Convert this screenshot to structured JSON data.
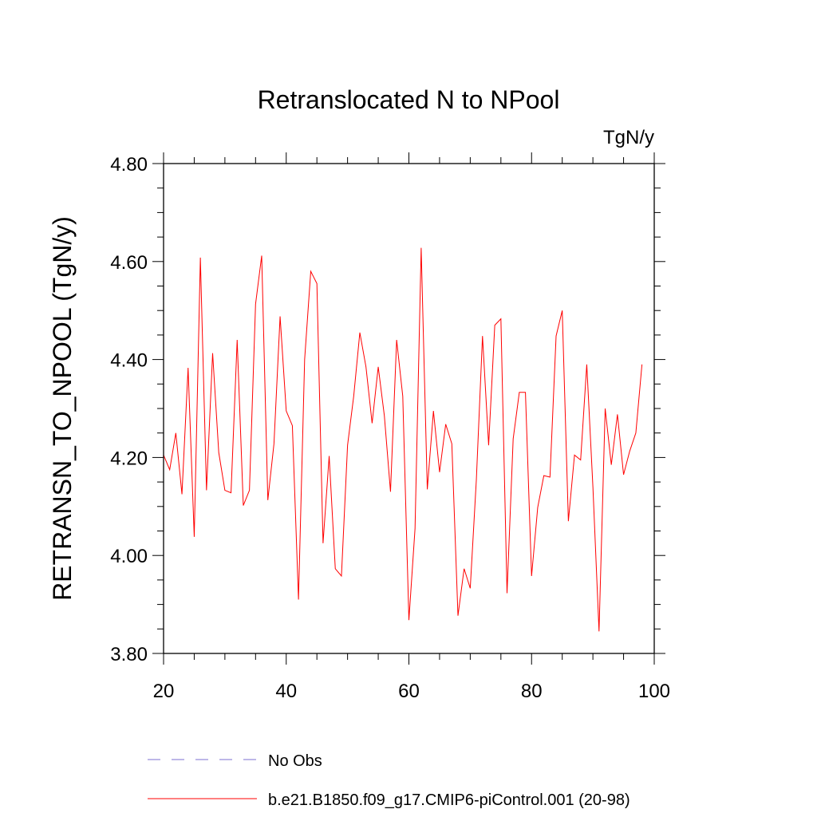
{
  "chart_data": {
    "type": "line",
    "title": "Retranslocated N to NPool",
    "units_label": "TgN/y",
    "ylabel": "RETRANSN_TO_NPOOL  (TgN/y)",
    "xlabel": "",
    "xlim": [
      20,
      100
    ],
    "ylim": [
      3.8,
      4.8
    ],
    "xticks": [
      20,
      40,
      60,
      80,
      100
    ],
    "xtick_labels": [
      "20",
      "40",
      "60",
      "80",
      "100"
    ],
    "yticks": [
      3.8,
      4.0,
      4.2,
      4.4,
      4.6,
      4.8
    ],
    "ytick_labels": [
      "3.80",
      "4.00",
      "4.20",
      "4.40",
      "4.60",
      "4.80"
    ],
    "grid": false,
    "legend": [
      {
        "label": "No Obs",
        "style": "dashed",
        "color": "#7b6fd1"
      },
      {
        "label": "b.e21.B1850.f09_g17.CMIP6-piControl.001 (20-98)",
        "style": "solid",
        "color": "#ff0000"
      }
    ],
    "series": [
      {
        "name": "b.e21.B1850.f09_g17.CMIP6-piControl.001 (20-98)",
        "color": "#ff0000",
        "x": [
          20,
          21,
          22,
          23,
          24,
          25,
          26,
          27,
          28,
          29,
          30,
          31,
          32,
          33,
          34,
          35,
          36,
          37,
          38,
          39,
          40,
          41,
          42,
          43,
          44,
          45,
          46,
          47,
          48,
          49,
          50,
          51,
          52,
          53,
          54,
          55,
          56,
          57,
          58,
          59,
          60,
          61,
          62,
          63,
          64,
          65,
          66,
          67,
          68,
          69,
          70,
          71,
          72,
          73,
          74,
          75,
          76,
          77,
          78,
          79,
          80,
          81,
          82,
          83,
          84,
          85,
          86,
          87,
          88,
          89,
          90,
          91,
          92,
          93,
          94,
          95,
          96,
          97,
          98
        ],
        "values": [
          4.205,
          4.175,
          4.25,
          4.125,
          4.383,
          4.038,
          4.608,
          4.133,
          4.413,
          4.21,
          4.133,
          4.128,
          4.44,
          4.102,
          4.133,
          4.513,
          4.612,
          4.113,
          4.228,
          4.488,
          4.295,
          4.265,
          3.91,
          4.4,
          4.58,
          4.555,
          4.025,
          4.203,
          3.973,
          3.958,
          4.225,
          4.325,
          4.455,
          4.385,
          4.27,
          4.385,
          4.285,
          4.13,
          4.44,
          4.325,
          3.868,
          4.055,
          4.628,
          4.135,
          4.295,
          4.17,
          4.268,
          4.228,
          3.877,
          3.973,
          3.933,
          4.155,
          4.448,
          4.225,
          4.47,
          4.483,
          3.923,
          4.238,
          4.333,
          4.333,
          3.958,
          4.098,
          4.163,
          4.16,
          4.448,
          4.5,
          4.07,
          4.205,
          4.195,
          4.39,
          4.14,
          3.845,
          4.3,
          4.185,
          4.288,
          4.165,
          4.213,
          4.25,
          4.39
        ]
      }
    ]
  }
}
